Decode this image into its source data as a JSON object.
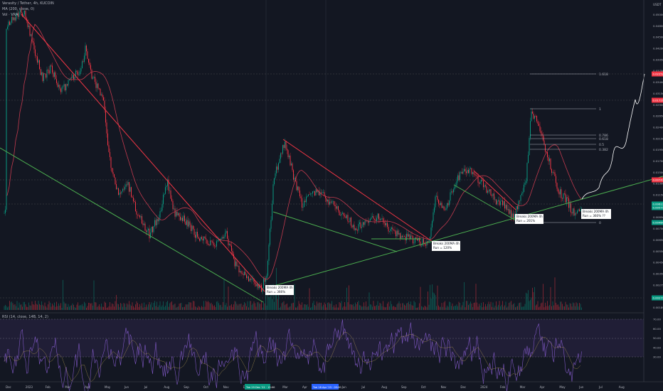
{
  "header": {
    "symbol_line": "Verasity / Tether, 4h, KUCOIN",
    "ma_line": "MA (200, close, 0)",
    "vol_line": "Vol · VRA",
    "rsi_line": "RSI (14, close, 14B, 14, 2)"
  },
  "price_axis": {
    "currency": "USDT",
    "ticks": [
      "0.05000",
      "0.04800",
      "0.04500",
      "0.04200",
      "0.03950",
      "0.03700",
      "0.03400",
      "0.03150",
      "0.02900",
      "0.02650",
      "0.02400",
      "0.02150",
      "0.01950",
      "0.01700",
      "0.01500",
      "0.01300",
      "0.01150",
      "0.01000",
      "0.00850",
      "0.00750",
      "0.00650",
      "0.00550",
      "0.00450",
      "0.00350",
      "0.00275",
      "0.00225",
      "0.00189"
    ],
    "badges": [
      {
        "text": "0.02252",
        "color": "#f23645"
      },
      {
        "text": "0.01720",
        "color": "#f23645"
      },
      {
        "text": "0.00747",
        "color": "#f23645"
      },
      {
        "text": "0.00611",
        "color": "#089981"
      },
      {
        "text": "0.00571",
        "color": "#089981"
      },
      {
        "text": "0.00464",
        "color": "#089981"
      },
      {
        "text": "0.00271",
        "color": "#089981"
      }
    ]
  },
  "rsi_axis": {
    "ticks": [
      "70.00",
      "60.00",
      "50.00",
      "40.00",
      "30.00"
    ]
  },
  "time_axis": {
    "labels": [
      "Dec",
      "2023",
      "Feb",
      "Mar",
      "Apr",
      "May",
      "Jun",
      "Jul",
      "Aug",
      "Sep",
      "Oct",
      "Nov",
      "Dec",
      "Feb",
      "Mar",
      "Apr",
      "May",
      "Jun",
      "Jul",
      "Aug",
      "Sep",
      "Oct",
      "Nov",
      "Dec",
      "2024",
      "Feb",
      "Mar",
      "Apr",
      "May",
      "Jun",
      "Jul",
      "Aug"
    ],
    "highlight_1": "Tue 29 Dec '22 · 15:00",
    "highlight_2": "Tue 18 Apr '23 · 05:00"
  },
  "annotations": {
    "breaks_1": "Breaks 200MA 4h",
    "run_1": "Run = 366%",
    "breaks_2": "Breaks 200MA 4h",
    "run_2": "Run = 120%",
    "breaks_3": "Breaks 200MA 4h",
    "run_3": "Run = 201%",
    "breaks_4": "Breaks 200MA 4h",
    "run_4": "Run = 360% ??"
  },
  "fib_levels": {
    "f1618": "1.618",
    "f1": "1",
    "f0786": "0.786",
    "f0618": "0.618",
    "f05": "0.5",
    "f0382": "0.382",
    "f0": "0"
  },
  "colors": {
    "background": "#131722",
    "up": "#089981",
    "down": "#f23645",
    "ma": "#c23a4e",
    "downtrend": "#f23645",
    "support": "#4caf50",
    "rsi": "#7e57c2",
    "rsi_band": "#2a2345"
  },
  "chart_data": {
    "type": "candlestick",
    "title": "Verasity / Tether, 4h, KUCOIN",
    "yscale": "log",
    "indicators": [
      "MA 200",
      "Volume",
      "RSI 14"
    ],
    "approx_close_path": {
      "dates": [
        "2022-12",
        "2023-01",
        "2023-02",
        "2023-03",
        "2023-04",
        "2023-05",
        "2023-06",
        "2023-07",
        "2023-08",
        "2023-09",
        "2023-10",
        "2023-11",
        "2023-12",
        "2024-01",
        "2024-02",
        "2024-03",
        "2024-04",
        "2024-05"
      ],
      "values": [
        0.0049,
        0.0042,
        0.003,
        0.0034,
        0.0033,
        0.002,
        0.0014,
        0.0012,
        0.001,
        0.00085,
        0.0008,
        0.0007,
        0.00055,
        0.0017,
        0.0012,
        0.0006,
        0.005,
        0.00464
      ]
    }
  }
}
